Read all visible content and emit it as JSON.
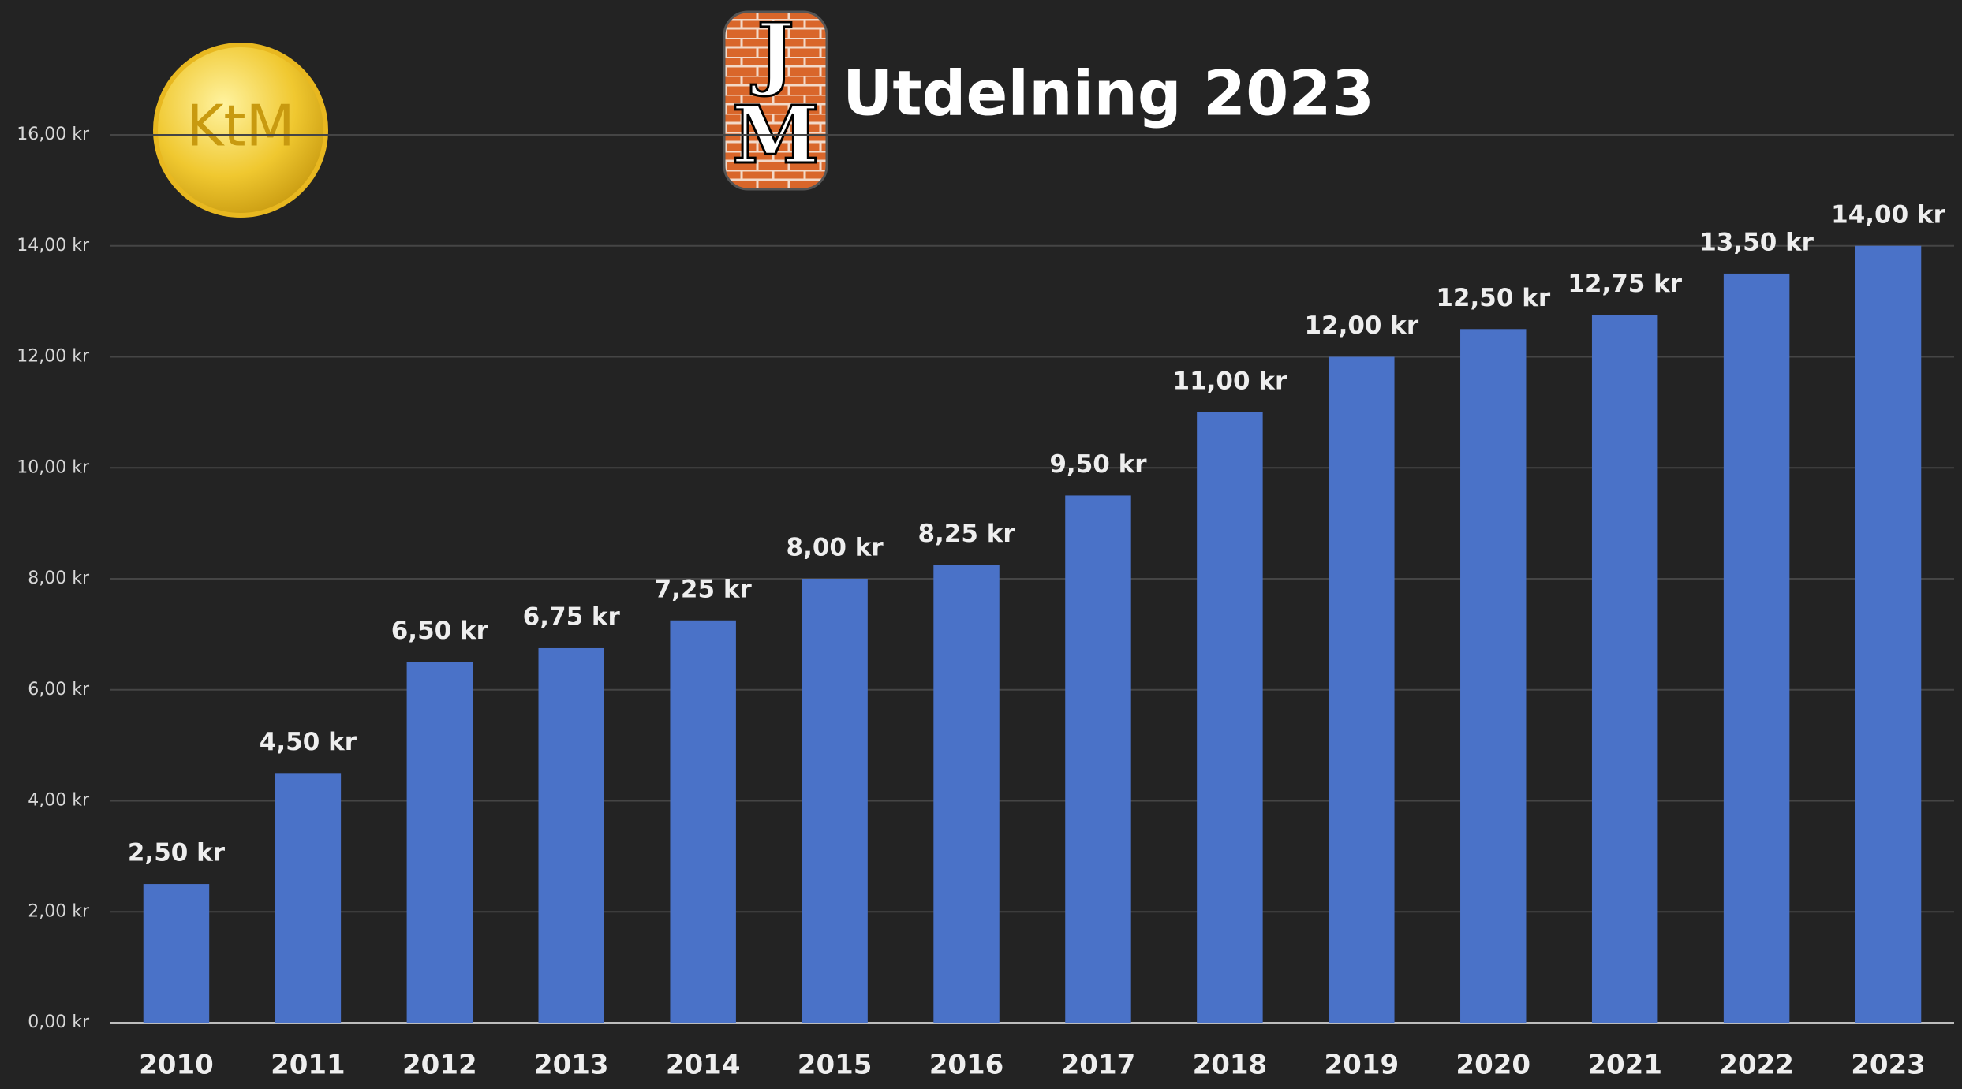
{
  "chart_data": {
    "type": "bar",
    "title": "Utdelning 2023",
    "logos": {
      "coin": "KtM",
      "brick_top": "J",
      "brick_bottom": "M"
    },
    "categories": [
      "2010",
      "2011",
      "2012",
      "2013",
      "2014",
      "2015",
      "2016",
      "2017",
      "2018",
      "2019",
      "2020",
      "2021",
      "2022",
      "2023"
    ],
    "values": [
      2.5,
      4.5,
      6.5,
      6.75,
      7.25,
      8,
      8.25,
      9.5,
      11,
      12,
      12.5,
      12.75,
      13.5,
      14
    ],
    "value_labels": [
      "2,50 kr",
      "4,50 kr",
      "6,50 kr",
      "6,75 kr",
      "7,25 kr",
      "8,00 kr",
      "8,25 kr",
      "9,50 kr",
      "11,00 kr",
      "12,00 kr",
      "12,50 kr",
      "12,75 kr",
      "13,50 kr",
      "14,00 kr"
    ],
    "color": "#4a72c8",
    "ylim": [
      0,
      16
    ],
    "yticks": [
      {
        "value": 0,
        "label": "0,00 kr"
      },
      {
        "value": 2,
        "label": "2,00 kr"
      },
      {
        "value": 4,
        "label": "4,00 kr"
      },
      {
        "value": 6,
        "label": "6,00 kr"
      },
      {
        "value": 8,
        "label": "8,00 kr"
      },
      {
        "value": 10,
        "label": "10,00 kr"
      },
      {
        "value": 12,
        "label": "12,00 kr"
      },
      {
        "value": 14,
        "label": "14,00 kr"
      },
      {
        "value": 16,
        "label": "16,00 kr"
      }
    ],
    "grid": true
  }
}
